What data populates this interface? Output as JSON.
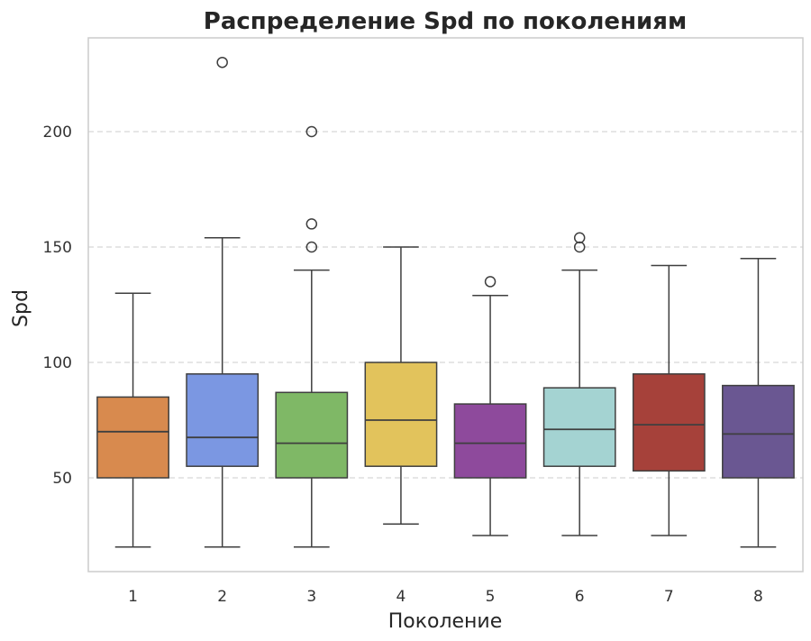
{
  "chart_data": {
    "type": "box",
    "title": "Распределение Spd по поколениям",
    "xlabel": "Поколение",
    "ylabel": "Spd",
    "ylim": [
      10,
      240
    ],
    "yticks": [
      50,
      100,
      150,
      200
    ],
    "grid": "y-dashed",
    "categories": [
      "1",
      "2",
      "3",
      "4",
      "5",
      "6",
      "7",
      "8"
    ],
    "boxes": [
      {
        "category": "1",
        "color": "#D88A4E",
        "whisker_low": 20,
        "q1": 50,
        "median": 70,
        "q3": 85,
        "whisker_high": 130,
        "outliers": []
      },
      {
        "category": "2",
        "color": "#7B97E2",
        "whisker_low": 20,
        "q1": 55,
        "median": 67.5,
        "q3": 95,
        "whisker_high": 154,
        "outliers": [
          230
        ]
      },
      {
        "category": "3",
        "color": "#7FB866",
        "whisker_low": 20,
        "q1": 50,
        "median": 65,
        "q3": 87,
        "whisker_high": 140,
        "outliers": [
          150,
          160,
          200
        ]
      },
      {
        "category": "4",
        "color": "#E2C35C",
        "whisker_low": 30,
        "q1": 55,
        "median": 75,
        "q3": 100,
        "whisker_high": 150,
        "outliers": []
      },
      {
        "category": "5",
        "color": "#8E4A9C",
        "whisker_low": 25,
        "q1": 50,
        "median": 65,
        "q3": 82,
        "whisker_high": 129,
        "outliers": [
          135
        ]
      },
      {
        "category": "6",
        "color": "#A4D3D2",
        "whisker_low": 25,
        "q1": 55,
        "median": 71,
        "q3": 89,
        "whisker_high": 140,
        "outliers": [
          150,
          154
        ]
      },
      {
        "category": "7",
        "color": "#A6413A",
        "whisker_low": 25,
        "q1": 53,
        "median": 73,
        "q3": 95,
        "whisker_high": 142,
        "outliers": []
      },
      {
        "category": "8",
        "color": "#6A5792",
        "whisker_low": 20,
        "q1": 50,
        "median": 69,
        "q3": 90,
        "whisker_high": 145,
        "outliers": []
      }
    ]
  }
}
